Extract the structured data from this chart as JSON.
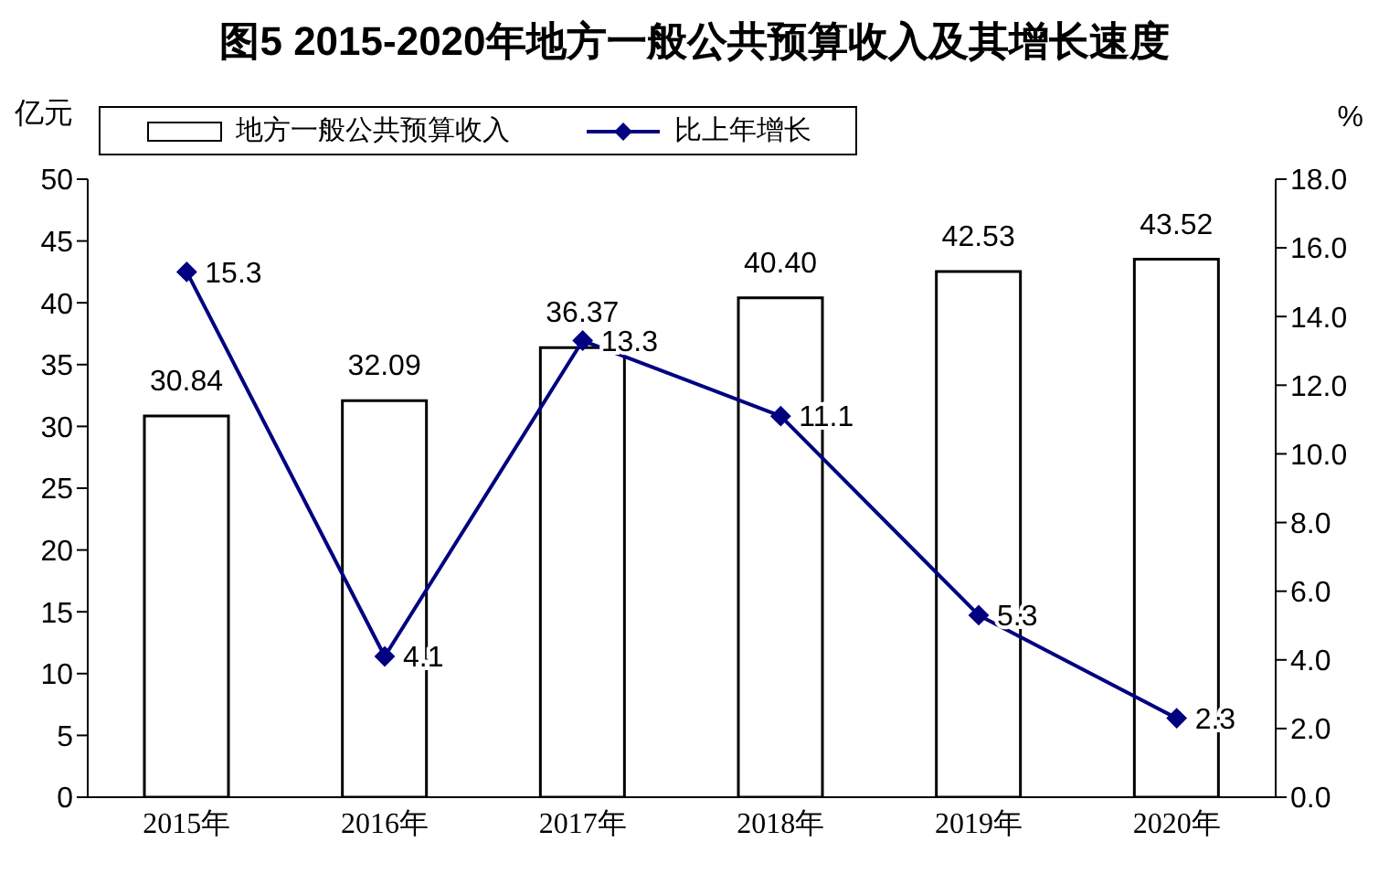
{
  "chart_data": {
    "type": "bar",
    "title": "图5 2015-2020年地方一般公共预算收入及其增长速度",
    "ylabel": "亿元",
    "y2label": "%",
    "categories": [
      "2015年",
      "2016年",
      "2017年",
      "2018年",
      "2019年",
      "2020年"
    ],
    "series": [
      {
        "name": "地方一般公共预算收入",
        "color": "#ffffff",
        "values": [
          30.84,
          32.09,
          36.37,
          40.4,
          42.53,
          43.52
        ],
        "value_labels": [
          "30.84",
          "32.09",
          "36.37",
          "40.40",
          "42.53",
          "43.52"
        ]
      },
      {
        "name": "比上年增长",
        "type": "line",
        "axis": "y2",
        "color": "#000080",
        "marker": "diamond",
        "values": [
          15.3,
          4.1,
          13.3,
          11.1,
          5.3,
          2.3
        ],
        "value_labels": [
          "15.3",
          "4.1",
          "13.3",
          "11.1",
          "5.3",
          "2.3"
        ]
      }
    ],
    "ylim": [
      0,
      50
    ],
    "yticks": [
      0,
      5,
      10,
      15,
      20,
      25,
      30,
      35,
      40,
      45,
      50
    ],
    "y2lim": [
      0,
      18
    ],
    "y2ticks": [
      {
        "value": 0,
        "label": "0.0"
      },
      {
        "value": 2,
        "label": "2.0"
      },
      {
        "value": 4,
        "label": "4.0"
      },
      {
        "value": 6,
        "label": "6.0"
      },
      {
        "value": 8,
        "label": "8.0"
      },
      {
        "value": 10,
        "label": "10.0"
      },
      {
        "value": 12,
        "label": "12.0"
      },
      {
        "value": 14,
        "label": "14.0"
      },
      {
        "value": 16,
        "label": "16.0"
      },
      {
        "value": 18,
        "label": "18.0"
      }
    ],
    "grid": false,
    "legend": "top"
  }
}
